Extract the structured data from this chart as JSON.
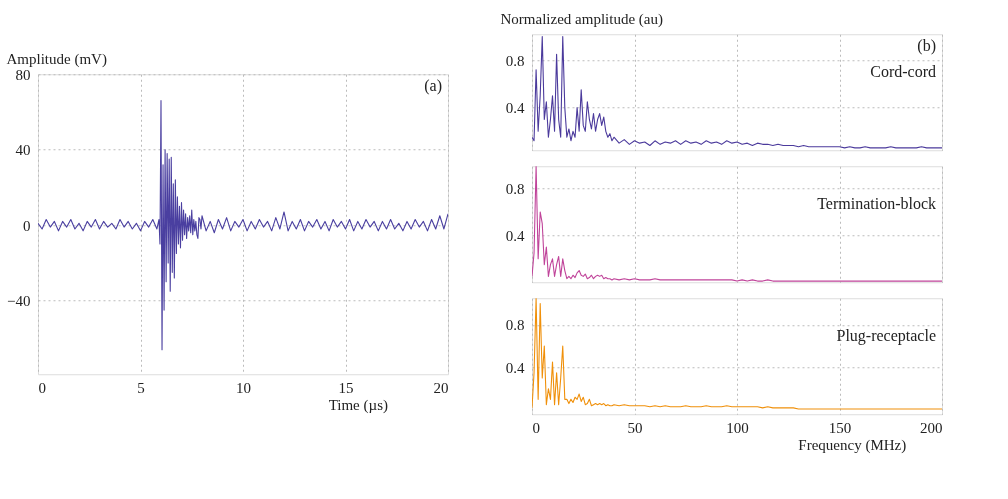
{
  "chart_data": [
    {
      "type": "line",
      "ylabel": "Amplitude (mV)",
      "xlabel": "Time (µs)",
      "annotations": [
        "(a)"
      ],
      "xlim": [
        0,
        20
      ],
      "ylim": [
        -79,
        80
      ],
      "xticks": [
        0,
        5,
        10,
        15,
        20
      ],
      "yticks": [
        -40,
        0,
        40,
        80
      ],
      "grid": true,
      "legend": false,
      "line_style": "solid",
      "marker": "none",
      "x": [
        0,
        0.2,
        0.4,
        0.6,
        0.8,
        1,
        1.2,
        1.4,
        1.6,
        1.8,
        2,
        2.2,
        2.4,
        2.6,
        2.8,
        3,
        3.2,
        3.4,
        3.6,
        3.8,
        4,
        4.2,
        4.4,
        4.6,
        4.8,
        5,
        5.2,
        5.4,
        5.6,
        5.8,
        5.9,
        5.95,
        6,
        6.05,
        6.1,
        6.15,
        6.2,
        6.25,
        6.3,
        6.35,
        6.4,
        6.45,
        6.5,
        6.55,
        6.6,
        6.65,
        6.7,
        6.75,
        6.8,
        6.85,
        6.9,
        6.95,
        7,
        7.05,
        7.1,
        7.15,
        7.2,
        7.25,
        7.3,
        7.35,
        7.4,
        7.45,
        7.5,
        7.55,
        7.6,
        7.65,
        7.7,
        7.75,
        7.8,
        7.85,
        7.9,
        7.95,
        8,
        8.2,
        8.4,
        8.6,
        8.8,
        9,
        9.2,
        9.4,
        9.6,
        9.8,
        10,
        10.2,
        10.4,
        10.6,
        10.8,
        11,
        11.2,
        11.4,
        11.6,
        11.8,
        12,
        12.2,
        12.4,
        12.6,
        12.8,
        13,
        13.2,
        13.4,
        13.6,
        13.8,
        14,
        14.2,
        14.4,
        14.6,
        14.8,
        15,
        15.2,
        15.4,
        15.6,
        15.8,
        16,
        16.2,
        16.4,
        16.6,
        16.8,
        17,
        17.2,
        17.4,
        17.6,
        17.8,
        18,
        18.2,
        18.4,
        18.6,
        18.8,
        19,
        19.2,
        19.4,
        19.6,
        19.8,
        20
      ],
      "series": [
        {
          "color": "#4a3fa0",
          "values": [
            1,
            -2,
            3,
            -1,
            2,
            -3,
            2,
            -1,
            3,
            -2,
            1,
            -3,
            2,
            -1,
            3,
            -2,
            2,
            -1,
            1,
            -2,
            3,
            -1,
            2,
            -2,
            1,
            -3,
            2,
            -1,
            3,
            -2,
            3,
            -10,
            66,
            -66,
            32,
            -45,
            40,
            -30,
            38,
            -20,
            35,
            -35,
            36,
            -25,
            22,
            -28,
            24,
            -15,
            15,
            -10,
            10,
            -12,
            12,
            -8,
            8,
            -5,
            6,
            -7,
            4,
            -3,
            5,
            -4,
            8,
            -5,
            3,
            -3,
            2,
            -5,
            -7,
            4,
            3,
            -2,
            5,
            -3,
            2,
            -4,
            3,
            -2,
            4,
            -3,
            2,
            -1,
            3,
            -3,
            2,
            -2,
            3,
            -1,
            2,
            -3,
            4,
            -2,
            7,
            -3,
            2,
            -2,
            3,
            -3,
            2,
            -1,
            3,
            -2,
            2,
            -3,
            3,
            -1,
            2,
            -2,
            3,
            -3,
            2,
            -2,
            3,
            -1,
            2,
            -3,
            2,
            -2,
            3,
            -2,
            1,
            -3,
            2,
            -2,
            3,
            -1,
            2,
            -3,
            3,
            -2,
            5,
            -2,
            6
          ]
        }
      ]
    },
    {
      "type": "line",
      "ylabel": "Normalized amplitude (au)",
      "annotations": [
        "(b)",
        "Cord-cord"
      ],
      "xlim": [
        0,
        200
      ],
      "ylim": [
        0.04,
        1.02
      ],
      "xticks": [
        0,
        50,
        100,
        150,
        200
      ],
      "yticks": [
        0.4,
        0.8
      ],
      "grid": true,
      "legend": false,
      "tick_labels": "y",
      "line_style": "solid",
      "marker": "none",
      "x": [
        0,
        1,
        2,
        3,
        4,
        5,
        6,
        7,
        8,
        9,
        10,
        11,
        12,
        13,
        14,
        15,
        16,
        17,
        18,
        19,
        20,
        21,
        22,
        23,
        24,
        25,
        26,
        27,
        28,
        29,
        30,
        31,
        32,
        33,
        34,
        35,
        36,
        37,
        38,
        39,
        40,
        42.5,
        45,
        47.5,
        50,
        52.5,
        55,
        57.5,
        60,
        62.5,
        65,
        67.5,
        70,
        72.5,
        75,
        77.5,
        80,
        82.5,
        85,
        87.5,
        90,
        92.5,
        95,
        97.5,
        100,
        102.5,
        105,
        107.5,
        110,
        112.5,
        115,
        117.5,
        120,
        122.5,
        125,
        127.5,
        130,
        132.5,
        135,
        137.5,
        140,
        142.5,
        145,
        147.5,
        150,
        152.5,
        155,
        157.5,
        160,
        162.5,
        165,
        167.5,
        170,
        172.5,
        175,
        177.5,
        180,
        182.5,
        185,
        187.5,
        190,
        192.5,
        195,
        197.5,
        200
      ],
      "series": [
        {
          "color": "#4b3a9c",
          "values": [
            0.15,
            0.12,
            0.72,
            0.2,
            0.5,
            1.0,
            0.3,
            0.45,
            0.15,
            0.3,
            0.5,
            0.2,
            0.85,
            0.3,
            0.15,
            1.0,
            0.4,
            0.15,
            0.22,
            0.12,
            0.2,
            0.15,
            0.4,
            0.2,
            0.55,
            0.25,
            0.2,
            0.45,
            0.3,
            0.22,
            0.35,
            0.2,
            0.3,
            0.35,
            0.25,
            0.32,
            0.2,
            0.15,
            0.18,
            0.12,
            0.15,
            0.1,
            0.13,
            0.09,
            0.12,
            0.1,
            0.11,
            0.08,
            0.12,
            0.09,
            0.11,
            0.1,
            0.12,
            0.09,
            0.12,
            0.1,
            0.11,
            0.09,
            0.12,
            0.1,
            0.11,
            0.09,
            0.12,
            0.1,
            0.11,
            0.09,
            0.1,
            0.08,
            0.1,
            0.09,
            0.09,
            0.08,
            0.09,
            0.08,
            0.08,
            0.08,
            0.07,
            0.08,
            0.07,
            0.07,
            0.07,
            0.07,
            0.07,
            0.07,
            0.07,
            0.06,
            0.07,
            0.06,
            0.06,
            0.07,
            0.06,
            0.06,
            0.06,
            0.06,
            0.07,
            0.06,
            0.06,
            0.06,
            0.06,
            0.06,
            0.07,
            0.06,
            0.06,
            0.06,
            0.06
          ]
        }
      ]
    },
    {
      "type": "line",
      "annotations": [
        "Termination-block"
      ],
      "xlim": [
        0,
        200
      ],
      "ylim": [
        0,
        0.99
      ],
      "xticks": [
        0,
        50,
        100,
        150,
        200
      ],
      "yticks": [
        0.4,
        0.8
      ],
      "grid": true,
      "legend": false,
      "tick_labels": "y",
      "line_style": "solid",
      "marker": "none",
      "x": [
        0,
        1,
        2,
        3,
        4,
        5,
        6,
        7,
        8,
        9,
        10,
        11,
        12,
        13,
        14,
        15,
        16,
        17,
        18,
        19,
        20,
        21,
        22,
        23,
        24,
        25,
        26,
        27,
        28,
        29,
        30,
        31,
        32,
        33,
        34,
        35,
        36,
        37,
        38,
        39,
        40,
        42.5,
        45,
        47.5,
        50,
        52.5,
        55,
        57.5,
        60,
        62.5,
        65,
        67.5,
        70,
        72.5,
        75,
        77.5,
        80,
        82.5,
        85,
        87.5,
        90,
        92.5,
        95,
        97.5,
        100,
        102.5,
        105,
        107.5,
        110,
        112.5,
        115,
        117.5,
        120,
        122.5,
        125,
        127.5,
        130,
        132.5,
        135,
        137.5,
        140,
        142.5,
        145,
        147.5,
        150,
        152.5,
        155,
        157.5,
        160,
        162.5,
        165,
        167.5,
        170,
        172.5,
        175,
        177.5,
        180,
        182.5,
        185,
        187.5,
        190,
        192.5,
        195,
        197.5,
        200
      ],
      "series": [
        {
          "color": "#c0449a",
          "values": [
            0.05,
            0.25,
            0.99,
            0.2,
            0.6,
            0.5,
            0.15,
            0.3,
            0.05,
            0.15,
            0.2,
            0.05,
            0.15,
            0.22,
            0.05,
            0.2,
            0.1,
            0.03,
            0.05,
            0.03,
            0.06,
            0.04,
            0.08,
            0.1,
            0.06,
            0.05,
            0.07,
            0.03,
            0.04,
            0.06,
            0.03,
            0.05,
            0.06,
            0.05,
            0.06,
            0.03,
            0.04,
            0.03,
            0.03,
            0.02,
            0.03,
            0.02,
            0.03,
            0.02,
            0.03,
            0.02,
            0.02,
            0.02,
            0.03,
            0.02,
            0.02,
            0.02,
            0.02,
            0.02,
            0.02,
            0.02,
            0.02,
            0.02,
            0.02,
            0.02,
            0.02,
            0.02,
            0.02,
            0.02,
            0.01,
            0.02,
            0.01,
            0.02,
            0.01,
            0.01,
            0.02,
            0.01,
            0.01,
            0.01,
            0.01,
            0.01,
            0.01,
            0.01,
            0.01,
            0.01,
            0.01,
            0.01,
            0.01,
            0.01,
            0.01,
            0.01,
            0.01,
            0.01,
            0.01,
            0.01,
            0.01,
            0.01,
            0.01,
            0.01,
            0.01,
            0.01,
            0.01,
            0.01,
            0.01,
            0.01,
            0.01,
            0.01,
            0.01,
            0.01,
            0.01
          ]
        }
      ]
    },
    {
      "type": "line",
      "xlabel": "Frequency (MHz)",
      "annotations": [
        "Plug-receptacle"
      ],
      "xlim": [
        0,
        200
      ],
      "ylim": [
        -0.04,
        1.05
      ],
      "xticks": [
        0,
        50,
        100,
        150,
        200
      ],
      "yticks": [
        0.4,
        0.8
      ],
      "grid": true,
      "legend": false,
      "line_style": "solid",
      "marker": "none",
      "x": [
        0,
        1,
        2,
        3,
        4,
        5,
        6,
        7,
        8,
        9,
        10,
        11,
        12,
        13,
        14,
        15,
        16,
        17,
        18,
        19,
        20,
        21,
        22,
        23,
        24,
        25,
        26,
        27,
        28,
        29,
        30,
        31,
        32,
        33,
        34,
        35,
        36,
        37,
        38,
        39,
        40,
        42.5,
        45,
        47.5,
        50,
        52.5,
        55,
        57.5,
        60,
        62.5,
        65,
        67.5,
        70,
        72.5,
        75,
        77.5,
        80,
        82.5,
        85,
        87.5,
        90,
        92.5,
        95,
        97.5,
        100,
        102.5,
        105,
        107.5,
        110,
        112.5,
        115,
        117.5,
        120,
        122.5,
        125,
        127.5,
        130,
        132.5,
        135,
        137.5,
        140,
        142.5,
        145,
        147.5,
        150,
        152.5,
        155,
        157.5,
        160,
        162.5,
        165,
        167.5,
        170,
        172.5,
        175,
        177.5,
        180,
        182.5,
        185,
        187.5,
        190,
        192.5,
        195,
        197.5,
        200
      ],
      "series": [
        {
          "color": "#f0900a",
          "values": [
            0.02,
            0.35,
            1.05,
            0.1,
            1.0,
            0.3,
            0.6,
            0.05,
            0.2,
            0.1,
            0.45,
            0.05,
            0.35,
            0.05,
            0.3,
            0.6,
            0.1,
            0.1,
            0.06,
            0.1,
            0.07,
            0.12,
            0.1,
            0.15,
            0.08,
            0.12,
            0.05,
            0.06,
            0.1,
            0.04,
            0.05,
            0.06,
            0.05,
            0.06,
            0.05,
            0.06,
            0.04,
            0.05,
            0.04,
            0.04,
            0.05,
            0.04,
            0.05,
            0.04,
            0.04,
            0.04,
            0.04,
            0.03,
            0.04,
            0.03,
            0.04,
            0.03,
            0.03,
            0.03,
            0.04,
            0.03,
            0.03,
            0.03,
            0.04,
            0.03,
            0.03,
            0.03,
            0.04,
            0.03,
            0.03,
            0.03,
            0.03,
            0.03,
            0.03,
            0.02,
            0.03,
            0.02,
            0.02,
            0.02,
            0.02,
            0.02,
            0.01,
            0.01,
            0.01,
            0.01,
            0.01,
            0.01,
            0.01,
            0.01,
            0.01,
            0.01,
            0.01,
            0.01,
            0.01,
            0.01,
            0.01,
            0.01,
            0.01,
            0.01,
            0.01,
            0.01,
            0.01,
            0.01,
            0.01,
            0.01,
            0.01,
            0.01,
            0.01,
            0.01,
            0.01
          ]
        }
      ]
    }
  ]
}
